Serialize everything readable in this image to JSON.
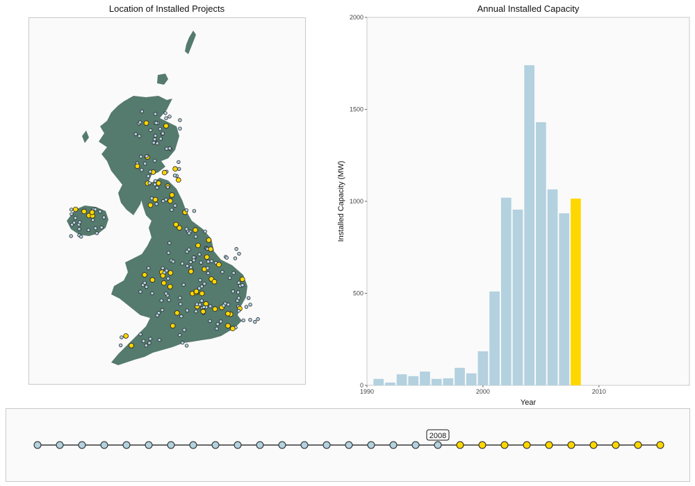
{
  "map": {
    "title": "Location of Installed Projects",
    "land_color": "#557a6e",
    "marker_installed_color": "#b3d1df",
    "marker_selected_color": "#ffd700"
  },
  "timeline": {
    "selected_label": "2008",
    "selected_year": 2008,
    "years": [
      1990,
      1991,
      1992,
      1993,
      1994,
      1995,
      1996,
      1997,
      1998,
      1999,
      2000,
      2001,
      2002,
      2003,
      2004,
      2005,
      2006,
      2007,
      2008,
      2009,
      2010,
      2011,
      2012,
      2013,
      2014,
      2015,
      2016,
      2017,
      2018
    ],
    "past_color": "#b3d1df",
    "future_color": "#ffd700"
  },
  "chart_data": {
    "type": "bar",
    "title": "Annual Installed Capacity",
    "xlabel": "Year",
    "ylabel": "Installed Capacity (MW)",
    "xlim": [
      1990,
      2017.8
    ],
    "ylim": [
      0,
      2000
    ],
    "xticks": [
      1990,
      2000,
      2010
    ],
    "yticks": [
      0,
      500,
      1000,
      1500,
      2000
    ],
    "x": [
      1991,
      1992,
      1993,
      1994,
      1995,
      1996,
      1997,
      1998,
      1999,
      2000,
      2001,
      2002,
      2003,
      2004,
      2005,
      2006,
      2007,
      2008
    ],
    "values": [
      35,
      15,
      60,
      50,
      75,
      35,
      38,
      95,
      65,
      185,
      510,
      1020,
      955,
      1740,
      1430,
      1065,
      935,
      1015
    ],
    "highlight_x": 2008,
    "bar_color": "#b3d1df",
    "highlight_color": "#ffd700",
    "grid": false
  }
}
